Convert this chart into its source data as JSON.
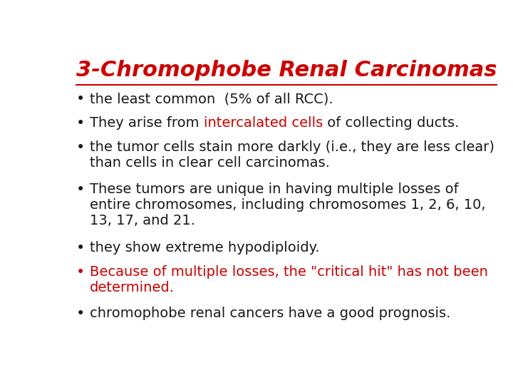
{
  "title": "3-Chromophobe Renal Carcinomas",
  "title_color": "#cc0000",
  "title_fontsize": 22,
  "background_color": "#ffffff",
  "bullet_fontsize": 14,
  "bullet_color": "#1a1a1a",
  "red_color": "#cc0000",
  "bullets": [
    {
      "parts": [
        {
          "text": "the least common  (5% of all RCC).",
          "color": "#1a1a1a"
        }
      ],
      "bullet_color": "#1a1a1a"
    },
    {
      "parts": [
        {
          "text": "They arise from ",
          "color": "#1a1a1a"
        },
        {
          "text": "intercalated cells",
          "color": "#cc0000"
        },
        {
          "text": " of collecting ducts.",
          "color": "#1a1a1a"
        }
      ],
      "bullet_color": "#1a1a1a"
    },
    {
      "parts": [
        {
          "text": "the tumor cells stain more darkly (i.e., they are less clear)\nthan cells in clear cell carcinomas.",
          "color": "#1a1a1a"
        }
      ],
      "bullet_color": "#1a1a1a"
    },
    {
      "parts": [
        {
          "text": "These tumors are unique in having multiple losses of\nentire chromosomes, including chromosomes 1, 2, 6, 10,\n13, 17, and 21.",
          "color": "#1a1a1a"
        }
      ],
      "bullet_color": "#1a1a1a"
    },
    {
      "parts": [
        {
          "text": "they show extreme hypodiploidy.",
          "color": "#1a1a1a"
        }
      ],
      "bullet_color": "#1a1a1a"
    },
    {
      "parts": [
        {
          "text": "Because of multiple losses, the \"critical hit\" has not been\ndetermined.",
          "color": "#cc0000"
        }
      ],
      "bullet_color": "#cc0000"
    },
    {
      "parts": [
        {
          "text": "chromophobe renal cancers have a good prognosis.",
          "color": "#1a1a1a"
        }
      ],
      "bullet_color": "#1a1a1a"
    }
  ]
}
